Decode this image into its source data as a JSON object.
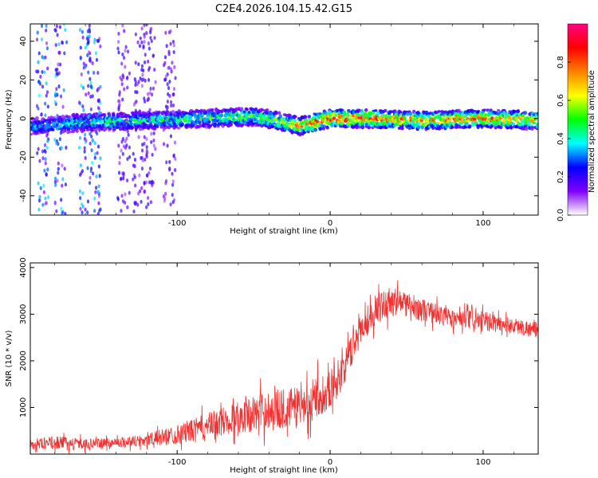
{
  "figure_title": "C2E4.2026.104.15.42.G15",
  "chart_data": [
    {
      "type": "heatmap",
      "title": "C2E4.2026.104.15.42.G15",
      "xlabel": "Height of straight line (km)",
      "ylabel": "Frequency (Hz)",
      "xlim": [
        -196,
        136
      ],
      "ylim": [
        -50,
        49
      ],
      "xticks": [
        -100,
        0,
        100
      ],
      "xtick_labels": [
        "-100",
        "0",
        "100"
      ],
      "yticks": [
        -40,
        -20,
        0,
        20,
        40
      ],
      "ytick_labels": [
        "-40",
        "-20",
        "0",
        "20",
        "40"
      ],
      "colorbar": {
        "label": "Normalized spectral amplitude",
        "range": [
          0,
          1
        ],
        "ticks": [
          0.0,
          0.2,
          0.4,
          0.6,
          0.8
        ],
        "tick_labels": [
          "0.0",
          "0.2",
          "0.4",
          "0.6",
          "0.8"
        ],
        "colors": [
          "#ffffff",
          "#8000ff",
          "#0000ff",
          "#00ffff",
          "#00ff00",
          "#ffff00",
          "#ff8000",
          "#ff0000",
          "#ff0080"
        ]
      },
      "ridge": {
        "description_points_km": [
          -190,
          -160,
          -120,
          -80,
          -50,
          -30,
          -20,
          -10,
          0,
          20,
          60,
          100,
          136
        ],
        "freq_hz": [
          -4,
          -2,
          -1,
          0,
          1,
          -2,
          -4,
          -2,
          0,
          0,
          -1,
          0,
          -1
        ],
        "peak_amplitude": [
          0.35,
          0.45,
          0.45,
          0.5,
          0.55,
          0.6,
          0.75,
          0.85,
          0.9,
          0.85,
          0.75,
          0.8,
          0.7
        ]
      }
    },
    {
      "type": "line",
      "xlabel": "Height of straight line (km)",
      "ylabel": "SNR (10 * v/v)",
      "xlim": [
        -196,
        136
      ],
      "ylim": [
        0,
        4100
      ],
      "xticks": [
        -100,
        0,
        100
      ],
      "xtick_labels": [
        "-100",
        "0",
        "100"
      ],
      "yticks": [
        1000,
        2000,
        3000,
        4000
      ],
      "ytick_labels": [
        "1000",
        "2000",
        "3000",
        "4000"
      ],
      "color": "#ee3333",
      "series": [
        {
          "name": "SNR",
          "envelope_x": [
            -196,
            -180,
            -160,
            -140,
            -120,
            -100,
            -80,
            -60,
            -40,
            -20,
            0,
            10,
            20,
            30,
            40,
            60,
            80,
            100,
            120,
            136
          ],
          "envelope_mean": [
            200,
            250,
            220,
            250,
            300,
            420,
            600,
            800,
            950,
            1000,
            1400,
            1900,
            2700,
            3100,
            3300,
            3100,
            2900,
            2850,
            2750,
            2650
          ],
          "envelope_spread": [
            150,
            200,
            150,
            150,
            200,
            300,
            400,
            500,
            600,
            650,
            600,
            500,
            500,
            450,
            450,
            350,
            300,
            300,
            250,
            250
          ]
        }
      ]
    }
  ]
}
